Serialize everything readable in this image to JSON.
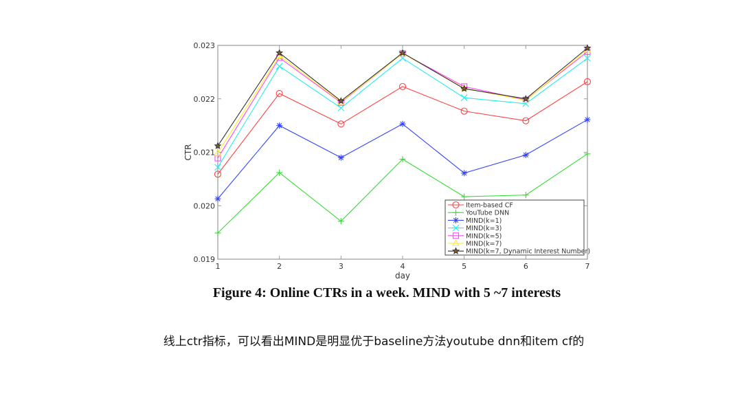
{
  "chart_data": {
    "type": "line",
    "xlabel": "day",
    "ylabel": "CTR",
    "x": [
      1,
      2,
      3,
      4,
      5,
      6,
      7
    ],
    "xlim": [
      1,
      7
    ],
    "ylim": [
      0.019,
      0.023
    ],
    "xticks": [
      "1",
      "2",
      "3",
      "4",
      "5",
      "6",
      "7"
    ],
    "yticks": [
      "0.019",
      "0.020",
      "0.021",
      "0.022",
      "0.023"
    ],
    "grid": false,
    "legend_position": "bottom-right",
    "series": [
      {
        "name": "Item-based CF",
        "color": "#ff4040",
        "marker": "circle",
        "values": [
          0.02059,
          0.0221,
          0.02153,
          0.02223,
          0.02177,
          0.02159,
          0.02232
        ]
      },
      {
        "name": "YouTube DNN",
        "color": "#33dd33",
        "marker": "plus",
        "values": [
          0.01949,
          0.02062,
          0.01971,
          0.02087,
          0.02017,
          0.0202,
          0.02097
        ]
      },
      {
        "name": "MIND(k=1)",
        "color": "#3344ff",
        "marker": "asterisk",
        "values": [
          0.02013,
          0.0215,
          0.0209,
          0.02153,
          0.02061,
          0.02095,
          0.02161
        ]
      },
      {
        "name": "MIND(k=3)",
        "color": "#22eeee",
        "marker": "x",
        "values": [
          0.02072,
          0.02261,
          0.02183,
          0.02276,
          0.02202,
          0.02191,
          0.02276
        ]
      },
      {
        "name": "MIND(k=5)",
        "color": "#ff44ff",
        "marker": "square",
        "values": [
          0.02089,
          0.02277,
          0.02193,
          0.02285,
          0.02223,
          0.02198,
          0.02288
        ]
      },
      {
        "name": "MIND(k=7)",
        "color": "#ffee22",
        "marker": "triangle",
        "values": [
          0.02099,
          0.02281,
          0.02194,
          0.02285,
          0.0222,
          0.02197,
          0.02292
        ]
      },
      {
        "name": "MIND(k=7, Dynamic Interest Number)",
        "color": "#333333",
        "marker": "star",
        "values": [
          0.02112,
          0.02286,
          0.02196,
          0.02286,
          0.02219,
          0.022,
          0.02295
        ]
      }
    ]
  },
  "caption": "Figure 4: Online CTRs in a week. MIND with 5 ~7 interests",
  "note": "线上ctr指标，可以看出MIND是明显优于baseline方法youtube dnn和item cf的"
}
